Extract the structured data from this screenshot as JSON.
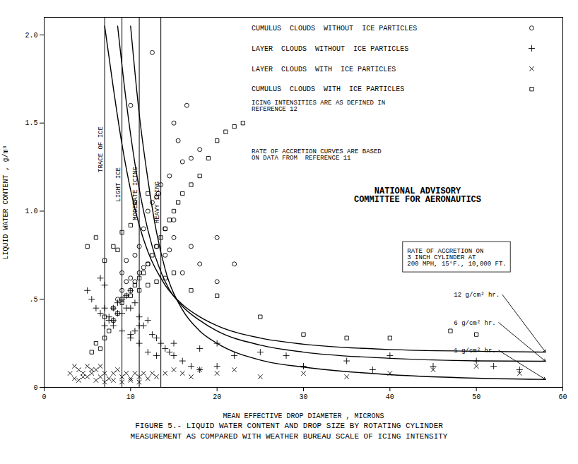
{
  "chart_data": {
    "type": "scatter",
    "title": "FIGURE 5.- LIQUID WATER CONTENT AND  DROP SIZE BY ROTATING CYLINDER\nMEASUREMENT AS COMPARED WITH WEATHER BUREAU SCALE OF ICING INTENSITY",
    "x_label": "MEAN EFFECTIVE DROP DIAMETER , MICRONS",
    "y_label": "LIQUID WATER CONTENT , g/m³",
    "xlim": [
      0,
      60
    ],
    "ylim": [
      0,
      2.1
    ],
    "xticks": [
      0,
      10,
      20,
      30,
      40,
      50,
      60
    ],
    "yticks": [
      0,
      {
        "value": 0.5,
        "label": ".5"
      },
      {
        "value": 1.0,
        "label": "1.0"
      },
      1.5,
      {
        "value": 2.0,
        "label": "2.0"
      }
    ],
    "legend": "upper right",
    "series": [
      {
        "name": "CUMULUS  CLOUDS  WITHOUT  ICE PARTICLES",
        "type": "scatter",
        "marker": "circle",
        "x": [
          8.5,
          9.0,
          9.5,
          10.0,
          10.5,
          11.0,
          11.5,
          12.0,
          12.0,
          12.5,
          13.0,
          13.2,
          14.0,
          14.5,
          15.0,
          15.0,
          16.0,
          17.0,
          18.0,
          10.0,
          12.5,
          9.5,
          10.5,
          11.0,
          13.0,
          14.0,
          15.0,
          17.0,
          20.0,
          22.0,
          16.0,
          18.0,
          20.0,
          9.0,
          11.5,
          13.5,
          14.5,
          15.5,
          16.5
        ],
        "values": [
          0.5,
          0.55,
          0.6,
          0.62,
          0.6,
          0.65,
          0.68,
          0.7,
          1.0,
          1.05,
          1.08,
          1.1,
          0.75,
          0.78,
          0.85,
          1.5,
          1.28,
          1.3,
          1.35,
          1.6,
          1.9,
          0.72,
          0.75,
          0.8,
          0.8,
          0.9,
          0.95,
          0.8,
          0.85,
          0.7,
          0.65,
          0.7,
          0.6,
          0.65,
          0.9,
          1.15,
          1.2,
          1.4,
          1.6
        ]
      },
      {
        "name": "LAYER  CLOUDS  WITHOUT  ICE PARTICLES",
        "type": "scatter",
        "marker": "plus",
        "x": [
          5.0,
          5.5,
          6.5,
          7.0,
          7.5,
          8.0,
          8.5,
          9.0,
          9.5,
          10.0,
          7.0,
          7.5,
          8.0,
          8.5,
          9.0,
          9.5,
          10.0,
          10.5,
          11.0,
          10.0,
          10.5,
          11.0,
          11.5,
          12.0,
          12.5,
          13.0,
          13.5,
          14.0,
          14.5,
          15.0,
          16.0,
          17.0,
          18.0,
          20.0,
          22.0,
          25.0,
          28.0,
          30.0,
          35.0,
          38.0,
          40.0,
          45.0,
          50.0,
          52.0,
          55.0,
          6.0,
          6.5,
          7.0,
          8.0,
          9.0,
          10.0,
          11.0,
          12.0,
          13.0,
          15.0,
          18.0,
          20.0
        ],
        "values": [
          0.55,
          0.5,
          0.62,
          0.58,
          0.4,
          0.45,
          0.48,
          0.5,
          0.52,
          0.55,
          0.35,
          0.38,
          0.38,
          0.42,
          0.42,
          0.45,
          0.45,
          0.48,
          0.4,
          0.3,
          0.32,
          0.35,
          0.35,
          0.38,
          0.3,
          0.28,
          0.25,
          0.22,
          0.2,
          0.18,
          0.15,
          0.12,
          0.22,
          0.25,
          0.18,
          0.2,
          0.18,
          0.12,
          0.15,
          0.1,
          0.18,
          0.12,
          0.15,
          0.12,
          0.1,
          0.45,
          0.42,
          0.45,
          0.35,
          0.32,
          0.28,
          0.25,
          0.2,
          0.18,
          0.25,
          0.1,
          0.12
        ]
      },
      {
        "name": "LAYER  CLOUDS  WITH  ICE PARTICLES",
        "type": "scatter",
        "marker": "x",
        "x": [
          3.0,
          3.5,
          4.0,
          4.5,
          5.0,
          5.5,
          6.0,
          6.5,
          7.0,
          7.5,
          8.0,
          8.5,
          9.0,
          9.5,
          10.0,
          10.5,
          11.0,
          11.5,
          12.0,
          12.5,
          13.0,
          14.0,
          15.0,
          16.0,
          17.0,
          18.0,
          20.0,
          22.0,
          25.0,
          30.0,
          35.0,
          40.0,
          45.0,
          50.0,
          55.0,
          4.0,
          5.0,
          6.0,
          7.0,
          8.0,
          9.0,
          10.0,
          11.0,
          3.5,
          4.5,
          5.5,
          6.5
        ],
        "values": [
          0.08,
          0.05,
          0.1,
          0.08,
          0.12,
          0.08,
          0.1,
          0.06,
          0.08,
          0.05,
          0.08,
          0.1,
          0.06,
          0.08,
          0.05,
          0.08,
          0.06,
          0.08,
          0.05,
          0.08,
          0.06,
          0.08,
          0.1,
          0.08,
          0.06,
          0.1,
          0.08,
          0.1,
          0.06,
          0.08,
          0.06,
          0.08,
          0.1,
          0.12,
          0.08,
          0.04,
          0.06,
          0.04,
          0.03,
          0.04,
          0.03,
          0.04,
          0.03,
          0.12,
          0.06,
          0.1,
          0.12
        ]
      },
      {
        "name": "CUMULUS  CLOUDS  WITH  ICE PARTICLES",
        "type": "scatter",
        "marker": "square",
        "x": [
          6.5,
          7.0,
          7.5,
          8.0,
          8.5,
          9.0,
          9.5,
          10.0,
          10.5,
          11.0,
          11.5,
          12.0,
          12.5,
          13.0,
          13.5,
          14.0,
          14.5,
          15.0,
          15.5,
          16.0,
          17.0,
          18.0,
          19.0,
          20.0,
          21.0,
          22.0,
          23.0,
          10.5,
          12.0,
          8.0,
          9.0,
          10.0,
          7.0,
          8.5,
          5.5,
          6.0,
          5.0,
          6.0,
          7.0,
          8.0,
          9.0,
          10.0,
          11.0,
          12.0,
          13.0,
          14.0,
          15.0,
          17.0,
          20.0,
          25.0,
          30.0,
          35.0,
          40.0,
          47.0,
          50.0
        ],
        "values": [
          0.22,
          0.28,
          0.32,
          0.38,
          0.42,
          0.48,
          0.52,
          0.55,
          0.58,
          0.62,
          0.65,
          0.7,
          0.75,
          0.8,
          0.85,
          0.9,
          0.95,
          1.0,
          1.05,
          1.1,
          1.15,
          1.2,
          1.3,
          1.4,
          1.45,
          1.48,
          1.5,
          1.05,
          1.1,
          0.8,
          0.88,
          0.92,
          0.72,
          0.78,
          0.2,
          0.25,
          0.8,
          0.85,
          0.4,
          0.45,
          0.5,
          0.52,
          0.55,
          0.58,
          0.6,
          0.62,
          0.65,
          0.55,
          0.52,
          0.4,
          0.3,
          0.28,
          0.28,
          0.32,
          0.3
        ]
      },
      {
        "name": "12 g/cm² hr.",
        "type": "line",
        "line_style": "solid",
        "x": [
          7.0,
          8.0,
          9.0,
          10.0,
          11.0,
          12.0,
          14.0,
          16.0,
          18.0,
          20.0,
          25.0,
          30.0,
          40.0,
          50.0,
          58.0
        ],
        "values": [
          2.05,
          1.7,
          1.38,
          1.12,
          0.92,
          0.77,
          0.58,
          0.47,
          0.4,
          0.35,
          0.28,
          0.245,
          0.215,
          0.205,
          0.2
        ]
      },
      {
        "name": "6 g/cm² hr.",
        "type": "line",
        "line_style": "solid",
        "x": [
          8.5,
          9.5,
          10.5,
          11.5,
          12.5,
          14.0,
          16.0,
          18.0,
          20.0,
          25.0,
          30.0,
          40.0,
          50.0,
          58.0
        ],
        "values": [
          2.05,
          1.62,
          1.27,
          1.0,
          0.8,
          0.6,
          0.46,
          0.38,
          0.32,
          0.24,
          0.2,
          0.165,
          0.15,
          0.148
        ]
      },
      {
        "name": "1 g/cm² hr.",
        "type": "line",
        "line_style": "solid",
        "x": [
          10.0,
          11.0,
          12.0,
          13.0,
          14.0,
          16.0,
          18.0,
          20.0,
          25.0,
          30.0,
          40.0,
          50.0,
          58.0
        ],
        "values": [
          2.05,
          1.55,
          1.18,
          0.88,
          0.67,
          0.44,
          0.32,
          0.25,
          0.155,
          0.115,
          0.072,
          0.052,
          0.045
        ]
      }
    ],
    "annotations": [
      {
        "type": "vline",
        "x": 7.0,
        "text": "TRACE OF ICE"
      },
      {
        "type": "vline",
        "x": 9.0,
        "text": "LIGHT ICE"
      },
      {
        "type": "vline",
        "x": 11.0,
        "text": "MODERATE ICING"
      },
      {
        "type": "vline",
        "x": 13.5,
        "text": "HEAVY ICING"
      },
      {
        "type": "box",
        "text": "RATE OF ACCRETION ON\n3 INCH CYLINDER AT\n200 MPH, 15°F., 10,000 FT."
      },
      {
        "type": "note",
        "text": "ICING INTENSITIES ARE AS DEFINED IN\nREFERENCE 12"
      },
      {
        "type": "note",
        "text": "RATE OF ACCRETION CURVES ARE BASED\nON DATA FROM  REFERENCE 11"
      },
      {
        "type": "heading",
        "text": "NATIONAL ADVISORY\nCOMMITTEE FOR AERONAUTICS"
      }
    ]
  }
}
